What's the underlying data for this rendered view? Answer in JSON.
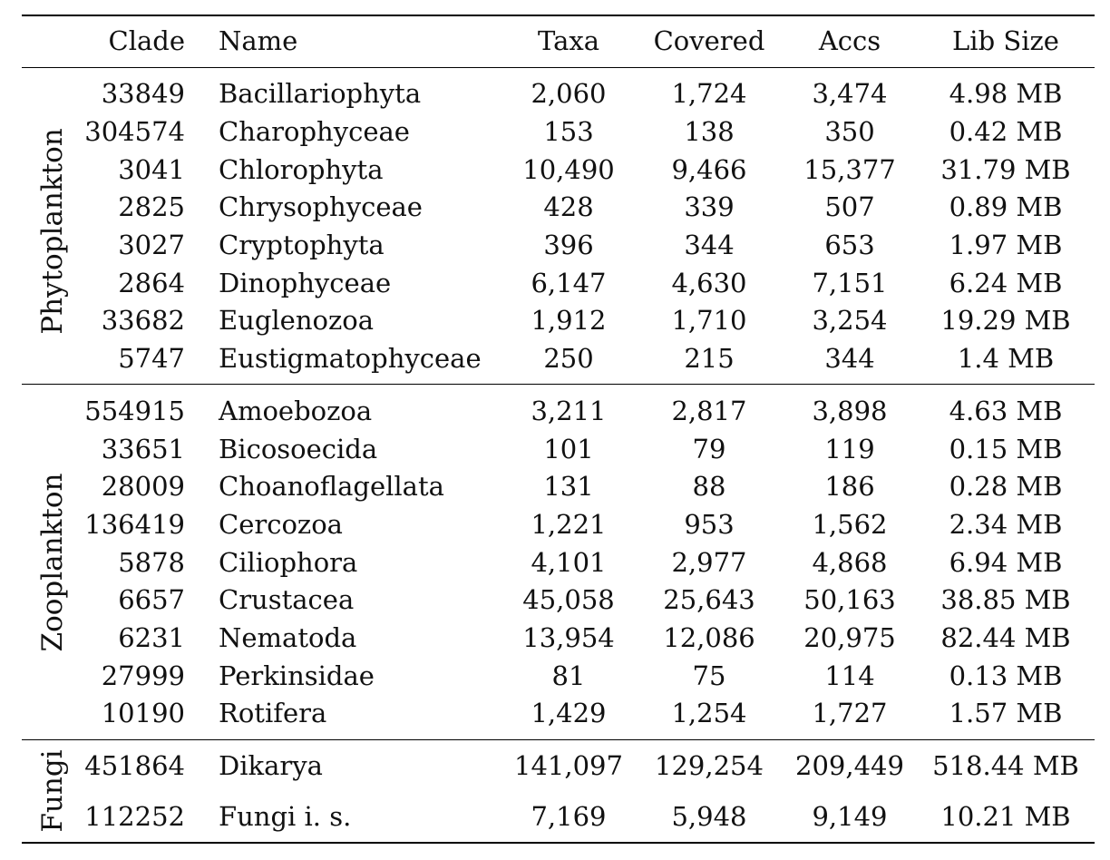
{
  "headers": {
    "clade": "Clade",
    "name": "Name",
    "taxa": "Taxa",
    "covered": "Covered",
    "accs": "Accs",
    "lib_size": "Lib Size"
  },
  "groups": [
    {
      "label": "Phytoplankton",
      "rows": [
        {
          "clade": "33849",
          "name": "Bacillariophyta",
          "taxa": "2,060",
          "covered": "1,724",
          "accs": "3,474",
          "lib_size": "4.98 MB"
        },
        {
          "clade": "304574",
          "name": "Charophyceae",
          "taxa": "153",
          "covered": "138",
          "accs": "350",
          "lib_size": "0.42 MB"
        },
        {
          "clade": "3041",
          "name": "Chlorophyta",
          "taxa": "10,490",
          "covered": "9,466",
          "accs": "15,377",
          "lib_size": "31.79 MB"
        },
        {
          "clade": "2825",
          "name": "Chrysophyceae",
          "taxa": "428",
          "covered": "339",
          "accs": "507",
          "lib_size": "0.89 MB"
        },
        {
          "clade": "3027",
          "name": "Cryptophyta",
          "taxa": "396",
          "covered": "344",
          "accs": "653",
          "lib_size": "1.97 MB"
        },
        {
          "clade": "2864",
          "name": "Dinophyceae",
          "taxa": "6,147",
          "covered": "4,630",
          "accs": "7,151",
          "lib_size": "6.24 MB"
        },
        {
          "clade": "33682",
          "name": "Euglenozoa",
          "taxa": "1,912",
          "covered": "1,710",
          "accs": "3,254",
          "lib_size": "19.29 MB"
        },
        {
          "clade": "5747",
          "name": "Eustigmatophyceae",
          "taxa": "250",
          "covered": "215",
          "accs": "344",
          "lib_size": "1.4 MB"
        }
      ]
    },
    {
      "label": "Zooplankton",
      "rows": [
        {
          "clade": "554915",
          "name": "Amoebozoa",
          "taxa": "3,211",
          "covered": "2,817",
          "accs": "3,898",
          "lib_size": "4.63 MB"
        },
        {
          "clade": "33651",
          "name": "Bicosoecida",
          "taxa": "101",
          "covered": "79",
          "accs": "119",
          "lib_size": "0.15 MB"
        },
        {
          "clade": "28009",
          "name": "Choanoflagellata",
          "taxa": "131",
          "covered": "88",
          "accs": "186",
          "lib_size": "0.28 MB"
        },
        {
          "clade": "136419",
          "name": "Cercozoa",
          "taxa": "1,221",
          "covered": "953",
          "accs": "1,562",
          "lib_size": "2.34 MB"
        },
        {
          "clade": "5878",
          "name": "Ciliophora",
          "taxa": "4,101",
          "covered": "2,977",
          "accs": "4,868",
          "lib_size": "6.94 MB"
        },
        {
          "clade": "6657",
          "name": "Crustacea",
          "taxa": "45,058",
          "covered": "25,643",
          "accs": "50,163",
          "lib_size": "38.85 MB"
        },
        {
          "clade": "6231",
          "name": "Nematoda",
          "taxa": "13,954",
          "covered": "12,086",
          "accs": "20,975",
          "lib_size": "82.44 MB"
        },
        {
          "clade": "27999",
          "name": "Perkinsidae",
          "taxa": "81",
          "covered": "75",
          "accs": "114",
          "lib_size": "0.13 MB"
        },
        {
          "clade": "10190",
          "name": "Rotifera",
          "taxa": "1,429",
          "covered": "1,254",
          "accs": "1,727",
          "lib_size": "1.57 MB"
        }
      ]
    },
    {
      "label": "Fungi",
      "rows": [
        {
          "clade": "451864",
          "name": "Dikarya",
          "taxa": "141,097",
          "covered": "129,254",
          "accs": "209,449",
          "lib_size": "518.44 MB"
        },
        {
          "clade": "112252",
          "name": "Fungi i. s.",
          "taxa": "7,169",
          "covered": "5,948",
          "accs": "9,149",
          "lib_size": "10.21 MB"
        }
      ]
    }
  ]
}
